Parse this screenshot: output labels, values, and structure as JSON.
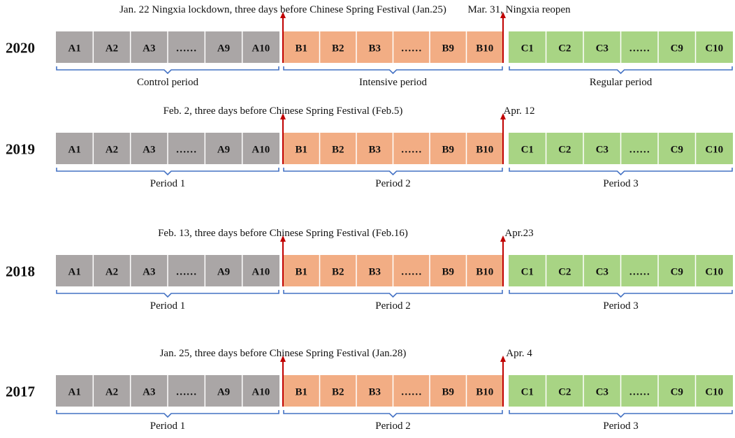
{
  "colors": {
    "group_a": "#aaa6a6",
    "group_b": "#f2ad84",
    "group_c": "#a8d484",
    "bracket": "#4472c4",
    "arrow": "#c00000"
  },
  "rows": [
    {
      "year": "2020",
      "start_note": "Jan. 22 Ningxia  lockdown, three days before Chinese Spring  Festival (Jan.25)",
      "end_note": "Mar. 31,  Ningxia  reopen",
      "cells": {
        "a": [
          "A1",
          "A2",
          "A3",
          "……",
          "A9",
          "A10"
        ],
        "b": [
          "B1",
          "B2",
          "B3",
          "……",
          "B9",
          "B10"
        ],
        "c": [
          "C1",
          "C2",
          "C3",
          "……",
          "C9",
          "C10"
        ]
      },
      "periods": [
        "Control period",
        "Intensive period",
        "Regular period"
      ]
    },
    {
      "year": "2019",
      "start_note": "Feb. 2, three days before Chinese Spring Festival (Feb.5)",
      "end_note": "Apr. 12",
      "cells": {
        "a": [
          "A1",
          "A2",
          "A3",
          "……",
          "A9",
          "A10"
        ],
        "b": [
          "B1",
          "B2",
          "B3",
          "……",
          "B9",
          "B10"
        ],
        "c": [
          "C1",
          "C2",
          "C3",
          "……",
          "C9",
          "C10"
        ]
      },
      "periods": [
        "Period 1",
        "Period 2",
        "Period 3"
      ]
    },
    {
      "year": "2018",
      "start_note": "Feb. 13, three days before Chinese Spring Festival (Feb.16)",
      "end_note": "Apr.23",
      "cells": {
        "a": [
          "A1",
          "A2",
          "A3",
          "……",
          "A9",
          "A10"
        ],
        "b": [
          "B1",
          "B2",
          "B3",
          "……",
          "B9",
          "B10"
        ],
        "c": [
          "C1",
          "C2",
          "C3",
          "……",
          "C9",
          "C10"
        ]
      },
      "periods": [
        "Period 1",
        "Period 2",
        "Period 3"
      ]
    },
    {
      "year": "2017",
      "start_note": "Jan. 25, three days before Chinese Spring Festival (Jan.28)",
      "end_note": "Apr. 4",
      "cells": {
        "a": [
          "A1",
          "A2",
          "A3",
          "……",
          "A9",
          "A10"
        ],
        "b": [
          "B1",
          "B2",
          "B3",
          "……",
          "B9",
          "B10"
        ],
        "c": [
          "C1",
          "C2",
          "C3",
          "……",
          "C9",
          "C10"
        ]
      },
      "periods": [
        "Period 1",
        "Period 2",
        "Period 3"
      ]
    }
  ]
}
